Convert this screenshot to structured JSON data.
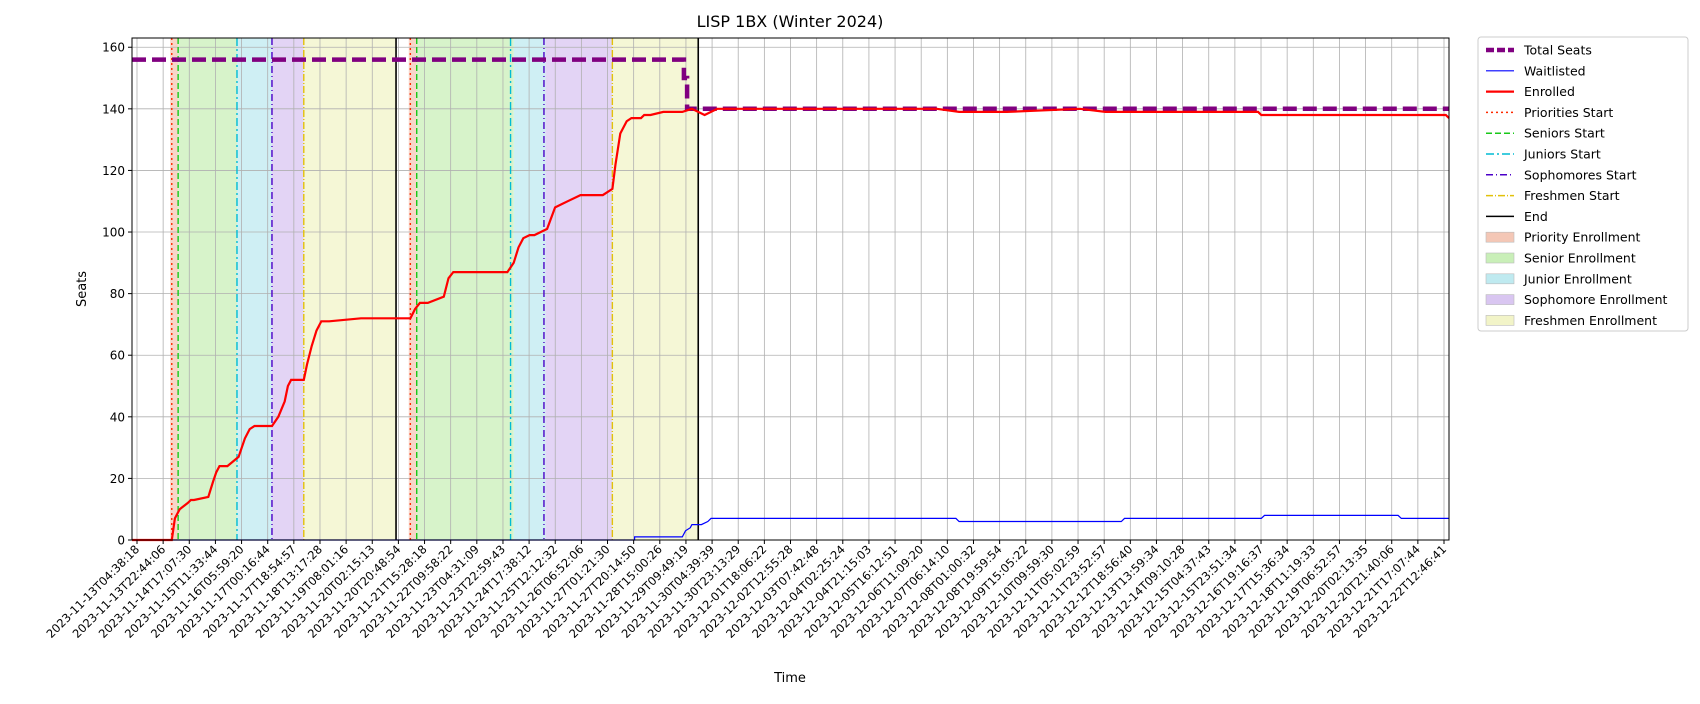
{
  "chart_data": {
    "type": "line",
    "title": "LISP 1BX (Winter 2024)",
    "xlabel": "Time",
    "ylabel": "Seats",
    "ylim": [
      0,
      163
    ],
    "yticks": [
      0,
      20,
      40,
      60,
      80,
      100,
      120,
      140,
      160
    ],
    "xlim_days": [
      0,
      41.4
    ],
    "grid": true,
    "legend_position": "outside-right-top",
    "xtick_labels": [
      "2023-11-13T04:38:18",
      "2023-11-13T22:44:06",
      "2023-11-14T17:07:30",
      "2023-11-15T11:33:44",
      "2023-11-16T05:59:20",
      "2023-11-17T00:16:44",
      "2023-11-17T18:54:57",
      "2023-11-18T13:17:28",
      "2023-11-19T08:01:16",
      "2023-11-20T02:15:13",
      "2023-11-20T20:48:54",
      "2023-11-21T15:28:18",
      "2023-11-22T09:58:22",
      "2023-11-23T04:31:09",
      "2023-11-23T22:59:43",
      "2023-11-24T17:38:12",
      "2023-11-25T12:12:32",
      "2023-11-26T06:52:06",
      "2023-11-27T01:21:30",
      "2023-11-27T20:14:50",
      "2023-11-28T15:00:26",
      "2023-11-29T09:49:19",
      "2023-11-30T04:39:39",
      "2023-11-30T23:13:29",
      "2023-12-01T18:06:22",
      "2023-12-02T12:55:28",
      "2023-12-03T07:42:48",
      "2023-12-04T02:25:24",
      "2023-12-04T21:15:03",
      "2023-12-05T16:12:51",
      "2023-12-06T11:09:20",
      "2023-12-07T06:14:10",
      "2023-12-08T01:00:32",
      "2023-12-08T19:59:54",
      "2023-12-09T15:05:22",
      "2023-12-10T09:59:30",
      "2023-12-11T05:02:59",
      "2023-12-11T23:52:57",
      "2023-12-12T18:56:40",
      "2023-12-13T13:59:34",
      "2023-12-14T09:10:28",
      "2023-12-15T04:37:43",
      "2023-12-15T23:51:34",
      "2023-12-16T19:16:37",
      "2023-12-17T15:36:34",
      "2023-12-18T11:19:33",
      "2023-12-19T06:52:57",
      "2023-12-20T02:13:35",
      "2023-12-20T21:40:06",
      "2023-12-21T17:07:44",
      "2023-12-22T12:46:41"
    ],
    "shaded_regions": [
      {
        "name": "Priority Enrollment",
        "color": "#f4c7b6",
        "ranges": [
          [
            1.2,
            1.45
          ],
          [
            8.7,
            8.95
          ]
        ]
      },
      {
        "name": "Senior Enrollment",
        "color": "#c9efb8",
        "ranges": [
          [
            1.45,
            3.3
          ],
          [
            8.95,
            12.0
          ]
        ]
      },
      {
        "name": "Junior Enrollment",
        "color": "#bfeaf0",
        "ranges": [
          [
            3.3,
            4.4
          ],
          [
            12.0,
            13.0
          ]
        ]
      },
      {
        "name": "Sophomore Enrollment",
        "color": "#d9c6f1",
        "ranges": [
          [
            4.4,
            5.4
          ],
          [
            13.0,
            15.1
          ]
        ]
      },
      {
        "name": "Freshmen Enrollment",
        "color": "#f2f4c8",
        "ranges": [
          [
            5.4,
            8.3
          ],
          [
            15.1,
            17.8
          ]
        ]
      }
    ],
    "vertical_lines": [
      {
        "name": "Priorities Start",
        "color": "#ff2a00",
        "dash": "2,3",
        "x": [
          1.25,
          8.75
        ]
      },
      {
        "name": "Seniors Start",
        "color": "#19c819",
        "dash": "6,3",
        "x": [
          1.45,
          8.95
        ]
      },
      {
        "name": "Juniors Start",
        "color": "#00bcd4",
        "dash": "8,3,2,3",
        "x": [
          3.3,
          11.9
        ]
      },
      {
        "name": "Sophomores Start",
        "color": "#4b00c8",
        "dash": "7,3,1,3",
        "x": [
          4.4,
          12.95
        ]
      },
      {
        "name": "Freshmen Start",
        "color": "#e2c10a",
        "dash": "7,2,1,2",
        "x": [
          5.4,
          15.1
        ]
      },
      {
        "name": "End",
        "color": "#000000",
        "dash": "",
        "x": [
          8.3,
          17.8
        ]
      }
    ],
    "series": [
      {
        "name": "Total Seats",
        "color": "#800080",
        "x": [
          0,
          17.35,
          17.35,
          17.45,
          17.45,
          41.4
        ],
        "y": [
          156,
          156,
          150,
          150,
          140,
          140
        ]
      },
      {
        "name": "Waitlisted",
        "color": "#0000ff",
        "x": [
          0,
          15.8,
          15.8,
          17.3,
          17.4,
          17.55,
          17.6,
          17.9,
          18.1,
          18.2,
          25.9,
          26.0,
          31.1,
          31.2,
          35.5,
          35.6,
          39.8,
          39.9,
          41.4
        ],
        "y": [
          0,
          0,
          1,
          1,
          3,
          4,
          5,
          5,
          6,
          7,
          7,
          6,
          6,
          7,
          7,
          8,
          8,
          7,
          7
        ]
      },
      {
        "name": "Enrolled",
        "color": "#ff0000",
        "x": [
          0,
          1.25,
          1.35,
          1.5,
          1.75,
          1.85,
          1.95,
          2.4,
          2.55,
          2.65,
          2.75,
          3.0,
          3.35,
          3.55,
          3.7,
          3.85,
          4.4,
          4.6,
          4.8,
          4.9,
          5.0,
          5.4,
          5.5,
          5.65,
          5.8,
          5.95,
          6.2,
          7.2,
          7.4,
          8.75,
          8.9,
          9.05,
          9.3,
          9.8,
          9.95,
          10.1,
          10.2,
          10.35,
          10.6,
          11.8,
          12.0,
          12.15,
          12.3,
          12.5,
          12.65,
          13.05,
          13.3,
          13.5,
          13.7,
          14.1,
          14.3,
          14.8,
          15.1,
          15.2,
          15.35,
          15.55,
          15.7,
          16.0,
          16.1,
          16.3,
          16.7,
          17.0,
          17.3,
          17.6,
          18.0,
          18.2,
          18.4,
          19.3,
          20.5,
          21.8,
          22.2,
          23.0,
          23.5,
          24.1,
          25.0,
          25.3,
          26.0,
          27.5,
          29.8,
          30.6,
          31.2,
          33.0,
          35.4,
          35.5,
          41.3,
          41.4
        ],
        "y": [
          0,
          0,
          7,
          10,
          12,
          13,
          13,
          14,
          19,
          22,
          24,
          24,
          27,
          33,
          36,
          37,
          37,
          40,
          45,
          50,
          52,
          52,
          57,
          63,
          68,
          71,
          71,
          72,
          72,
          72,
          75,
          77,
          77,
          79,
          85,
          87,
          87,
          87,
          87,
          87,
          90,
          95,
          98,
          99,
          99,
          101,
          108,
          109,
          110,
          112,
          112,
          112,
          114,
          122,
          132,
          136,
          137,
          137,
          138,
          138,
          139,
          139,
          139,
          140,
          138,
          139,
          140,
          140,
          140,
          140,
          140,
          140,
          140,
          140,
          140,
          140,
          139,
          139,
          140,
          139,
          139,
          139,
          139,
          138,
          138,
          137
        ]
      }
    ],
    "legend": [
      "Total Seats",
      "Waitlisted",
      "Enrolled",
      "Priorities Start",
      "Seniors Start",
      "Juniors Start",
      "Sophomores Start",
      "Freshmen Start",
      "End",
      "Priority Enrollment",
      "Senior Enrollment",
      "Junior Enrollment",
      "Sophomore Enrollment",
      "Freshmen Enrollment"
    ]
  }
}
